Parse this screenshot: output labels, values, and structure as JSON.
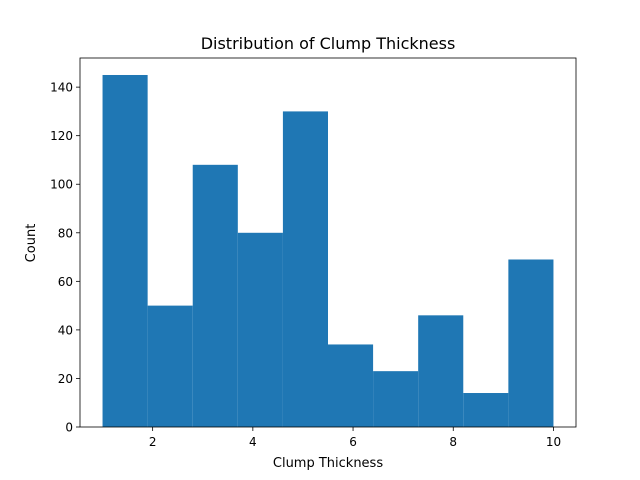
{
  "chart_data": {
    "type": "bar",
    "title": "Distribution of Clump Thickness",
    "xlabel": "Clump Thickness",
    "ylabel": "Count",
    "xlim": [
      0.55,
      10.45
    ],
    "ylim": [
      0,
      152
    ],
    "grid": false,
    "bar_color": "#1f77b4",
    "bins": [
      {
        "x0": 1.0,
        "x1": 1.9,
        "count": 145
      },
      {
        "x0": 1.9,
        "x1": 2.8,
        "count": 50
      },
      {
        "x0": 2.8,
        "x1": 3.7,
        "count": 108
      },
      {
        "x0": 3.7,
        "x1": 4.6,
        "count": 80
      },
      {
        "x0": 4.6,
        "x1": 5.5,
        "count": 130
      },
      {
        "x0": 5.5,
        "x1": 6.4,
        "count": 34
      },
      {
        "x0": 6.4,
        "x1": 7.3,
        "count": 23
      },
      {
        "x0": 7.3,
        "x1": 8.2,
        "count": 46
      },
      {
        "x0": 8.2,
        "x1": 9.1,
        "count": 14
      },
      {
        "x0": 9.1,
        "x1": 10.0,
        "count": 69
      }
    ],
    "xticks": [
      2,
      4,
      6,
      8,
      10
    ],
    "yticks": [
      0,
      20,
      40,
      60,
      80,
      100,
      120,
      140
    ]
  }
}
